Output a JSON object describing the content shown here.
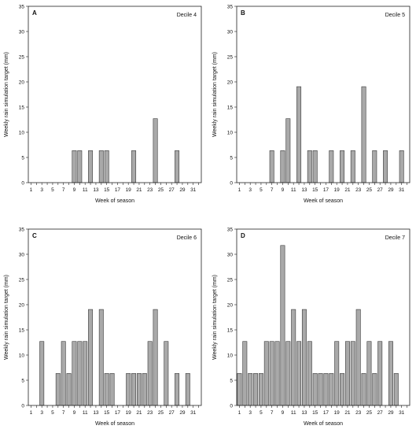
{
  "chart_data": [
    {
      "type": "bar",
      "panel": "A",
      "annotation": "Decile 4",
      "xlabel": "Week of season",
      "ylabel": "Weekly rain simulation target  (mm)",
      "ylim": [
        0,
        35
      ],
      "yticks": [
        0,
        5,
        10,
        15,
        20,
        25,
        30,
        35
      ],
      "xticks": [
        1,
        3,
        5,
        7,
        9,
        11,
        13,
        15,
        17,
        19,
        21,
        23,
        25,
        27,
        29,
        31
      ],
      "x": [
        1,
        2,
        3,
        4,
        5,
        6,
        7,
        8,
        9,
        10,
        11,
        12,
        13,
        14,
        15,
        16,
        17,
        18,
        19,
        20,
        21,
        22,
        23,
        24,
        25,
        26,
        27,
        28,
        29,
        30,
        31,
        32
      ],
      "values": [
        0,
        0,
        0,
        0,
        0,
        0,
        0,
        0,
        6.35,
        6.35,
        0,
        6.35,
        0,
        6.35,
        6.35,
        0,
        0,
        0,
        0,
        6.35,
        0,
        0,
        0,
        12.7,
        0,
        0,
        0,
        6.35,
        0,
        0,
        0,
        0
      ]
    },
    {
      "type": "bar",
      "panel": "B",
      "annotation": "Decile 5",
      "xlabel": "Week of season",
      "ylabel": "Weekly rain simulation target  (mm)",
      "ylim": [
        0,
        35
      ],
      "yticks": [
        0,
        5,
        10,
        15,
        20,
        25,
        30,
        35
      ],
      "xticks": [
        1,
        3,
        5,
        7,
        9,
        11,
        13,
        15,
        17,
        19,
        21,
        23,
        25,
        27,
        29,
        31
      ],
      "x": [
        1,
        2,
        3,
        4,
        5,
        6,
        7,
        8,
        9,
        10,
        11,
        12,
        13,
        14,
        15,
        16,
        17,
        18,
        19,
        20,
        21,
        22,
        23,
        24,
        25,
        26,
        27,
        28,
        29,
        30,
        31,
        32
      ],
      "values": [
        0,
        0,
        0,
        0,
        0,
        0,
        6.35,
        0,
        6.35,
        12.7,
        0,
        19.05,
        0,
        6.35,
        6.35,
        0,
        0,
        6.35,
        0,
        6.35,
        0,
        6.35,
        0,
        19.05,
        0,
        6.35,
        0,
        6.35,
        0,
        0,
        6.35,
        0
      ]
    },
    {
      "type": "bar",
      "panel": "C",
      "annotation": "Decile 6",
      "xlabel": "Week of season",
      "ylabel": "Weekly rain simulation target  (mm)",
      "ylim": [
        0,
        35
      ],
      "yticks": [
        0,
        5,
        10,
        15,
        20,
        25,
        30,
        35
      ],
      "xticks": [
        1,
        3,
        5,
        7,
        9,
        11,
        13,
        15,
        17,
        19,
        21,
        23,
        25,
        27,
        29,
        31
      ],
      "x": [
        1,
        2,
        3,
        4,
        5,
        6,
        7,
        8,
        9,
        10,
        11,
        12,
        13,
        14,
        15,
        16,
        17,
        18,
        19,
        20,
        21,
        22,
        23,
        24,
        25,
        26,
        27,
        28,
        29,
        30,
        31,
        32
      ],
      "values": [
        0,
        0,
        12.7,
        0,
        0,
        6.35,
        12.7,
        6.35,
        12.7,
        12.7,
        12.7,
        19.05,
        0,
        19.05,
        6.35,
        6.35,
        0,
        0,
        6.35,
        6.35,
        6.35,
        6.35,
        12.7,
        19.05,
        0,
        12.7,
        0,
        6.35,
        0,
        6.35,
        0,
        0
      ]
    },
    {
      "type": "bar",
      "panel": "D",
      "annotation": "Decile 7",
      "xlabel": "Week of season",
      "ylabel": "Weekly rain simulation target  (mm)",
      "ylim": [
        0,
        35
      ],
      "yticks": [
        0,
        5,
        10,
        15,
        20,
        25,
        30,
        35
      ],
      "xticks": [
        1,
        3,
        5,
        7,
        9,
        11,
        13,
        15,
        17,
        19,
        21,
        23,
        25,
        27,
        29,
        31
      ],
      "x": [
        1,
        2,
        3,
        4,
        5,
        6,
        7,
        8,
        9,
        10,
        11,
        12,
        13,
        14,
        15,
        16,
        17,
        18,
        19,
        20,
        21,
        22,
        23,
        24,
        25,
        26,
        27,
        28,
        29,
        30,
        31,
        32
      ],
      "values": [
        6.35,
        12.7,
        6.35,
        6.35,
        6.35,
        12.7,
        12.7,
        12.7,
        31.75,
        12.7,
        19.05,
        12.7,
        19.05,
        12.7,
        6.35,
        6.35,
        6.35,
        6.35,
        12.7,
        6.35,
        12.7,
        12.7,
        19.05,
        6.35,
        12.7,
        6.35,
        12.7,
        0,
        12.7,
        6.35,
        0,
        0
      ]
    }
  ]
}
